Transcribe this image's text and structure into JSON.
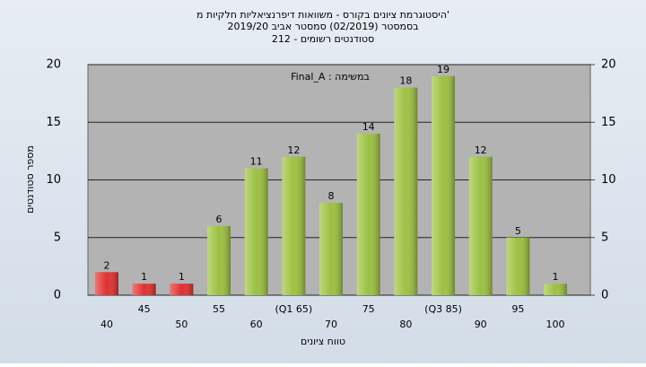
{
  "chart_data": {
    "type": "bar",
    "title": "'היסטוגרמת ציונים בקורס - משוואות דיפרנציאליות חלקיות מ",
    "subtitle": "בסמסטר (02/2019) סמסטר אביב 2019/20",
    "subtitle2": "סטודנטים רשומים - 212",
    "annotation": "במשימה : Final_A",
    "x_label": "טווח ציונים",
    "y_label": "מספר סטודנטים",
    "categories": [
      "40",
      "45",
      "50",
      "55",
      "60",
      "(Q1 65)",
      "70",
      "75",
      "80",
      "(Q3 85)",
      "90",
      "95",
      "100"
    ],
    "values": [
      2,
      1,
      1,
      6,
      11,
      12,
      8,
      14,
      18,
      19,
      12,
      5,
      1
    ],
    "colors": [
      "#e03030",
      "#e03030",
      "#e03030",
      "#9cc040",
      "#9cc040",
      "#9cc040",
      "#9cc040",
      "#9cc040",
      "#9cc040",
      "#9cc040",
      "#9cc040",
      "#9cc040",
      "#9cc040"
    ],
    "ylim": [
      0,
      20
    ],
    "yticks": [
      0,
      5,
      10,
      15,
      20
    ],
    "y2lim": [
      0,
      20
    ],
    "y2ticks": [
      0,
      5,
      10,
      15,
      20
    ],
    "grid": true
  }
}
